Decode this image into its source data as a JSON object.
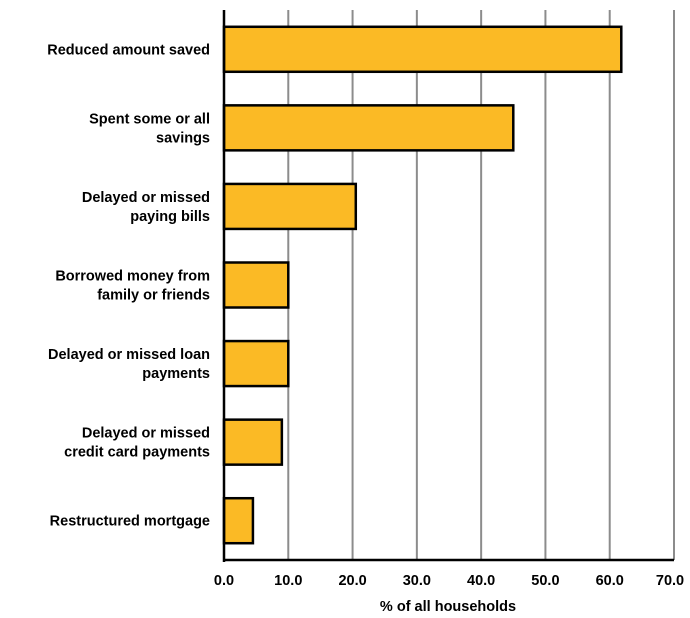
{
  "chart_data": {
    "type": "bar",
    "orientation": "horizontal",
    "categories": [
      "Reduced amount saved",
      "Spent some or all savings",
      "Delayed or missed paying bills",
      "Borrowed money from family or friends",
      "Delayed or missed loan payments",
      "Delayed or missed credit card payments",
      "Restructured mortgage"
    ],
    "category_lines": [
      [
        "Reduced amount saved"
      ],
      [
        "Spent some or all",
        "savings"
      ],
      [
        "Delayed or missed",
        "paying bills"
      ],
      [
        "Borrowed money from",
        "family or friends"
      ],
      [
        "Delayed or missed loan",
        "payments"
      ],
      [
        "Delayed or missed",
        "credit card payments"
      ],
      [
        "Restructured mortgage"
      ]
    ],
    "values": [
      61.8,
      45.0,
      20.5,
      10.0,
      10.0,
      9.0,
      4.5
    ],
    "xlabel": "% of all households",
    "ylabel": "",
    "xlim": [
      0,
      70
    ],
    "xticks": [
      0,
      10,
      20,
      30,
      40,
      50,
      60,
      70
    ],
    "xtick_labels": [
      "0.0",
      "10.0",
      "20.0",
      "30.0",
      "40.0",
      "50.0",
      "60.0",
      "70.0"
    ],
    "grid": "vertical",
    "legend": "none",
    "colors": {
      "bar_fill": "#FBBA25",
      "bar_stroke": "#000000",
      "grid": "#8C8C8C",
      "axis": "#000000"
    }
  }
}
